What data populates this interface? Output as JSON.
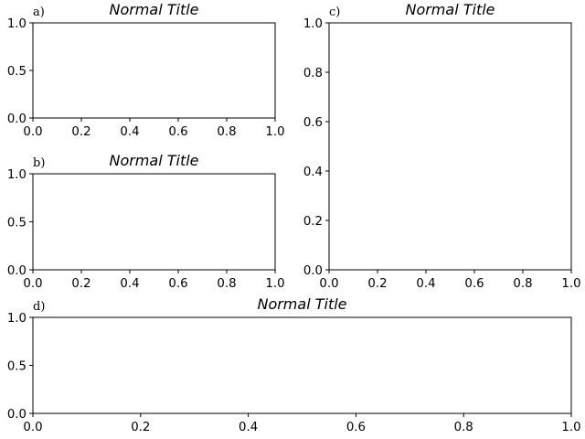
{
  "chart_data": [
    {
      "type": "scatter",
      "panel_label": "a)",
      "title": "Normal Title",
      "xlim": [
        0,
        1
      ],
      "ylim": [
        0,
        1
      ],
      "xticks": [
        "0.0",
        "0.2",
        "0.4",
        "0.6",
        "0.8",
        "1.0"
      ],
      "yticks": [
        "0.0",
        "0.5",
        "1.0"
      ],
      "series": []
    },
    {
      "type": "scatter",
      "panel_label": "b)",
      "title": "Normal Title",
      "xlim": [
        0,
        1
      ],
      "ylim": [
        0,
        1
      ],
      "xticks": [
        "0.0",
        "0.2",
        "0.4",
        "0.6",
        "0.8",
        "1.0"
      ],
      "yticks": [
        "0.0",
        "0.5",
        "1.0"
      ],
      "series": []
    },
    {
      "type": "scatter",
      "panel_label": "c)",
      "title": "Normal Title",
      "xlim": [
        0,
        1
      ],
      "ylim": [
        0,
        1
      ],
      "xticks": [
        "0.0",
        "0.2",
        "0.4",
        "0.6",
        "0.8",
        "1.0"
      ],
      "yticks": [
        "0.0",
        "0.2",
        "0.4",
        "0.6",
        "0.8",
        "1.0"
      ],
      "series": []
    },
    {
      "type": "scatter",
      "panel_label": "d)",
      "title": "Normal Title",
      "xlim": [
        0,
        1
      ],
      "ylim": [
        0,
        1
      ],
      "xticks": [
        "0.0",
        "0.2",
        "0.4",
        "0.6",
        "0.8",
        "1.0"
      ],
      "yticks": [
        "0.0",
        "0.5",
        "1.0"
      ],
      "series": []
    }
  ]
}
